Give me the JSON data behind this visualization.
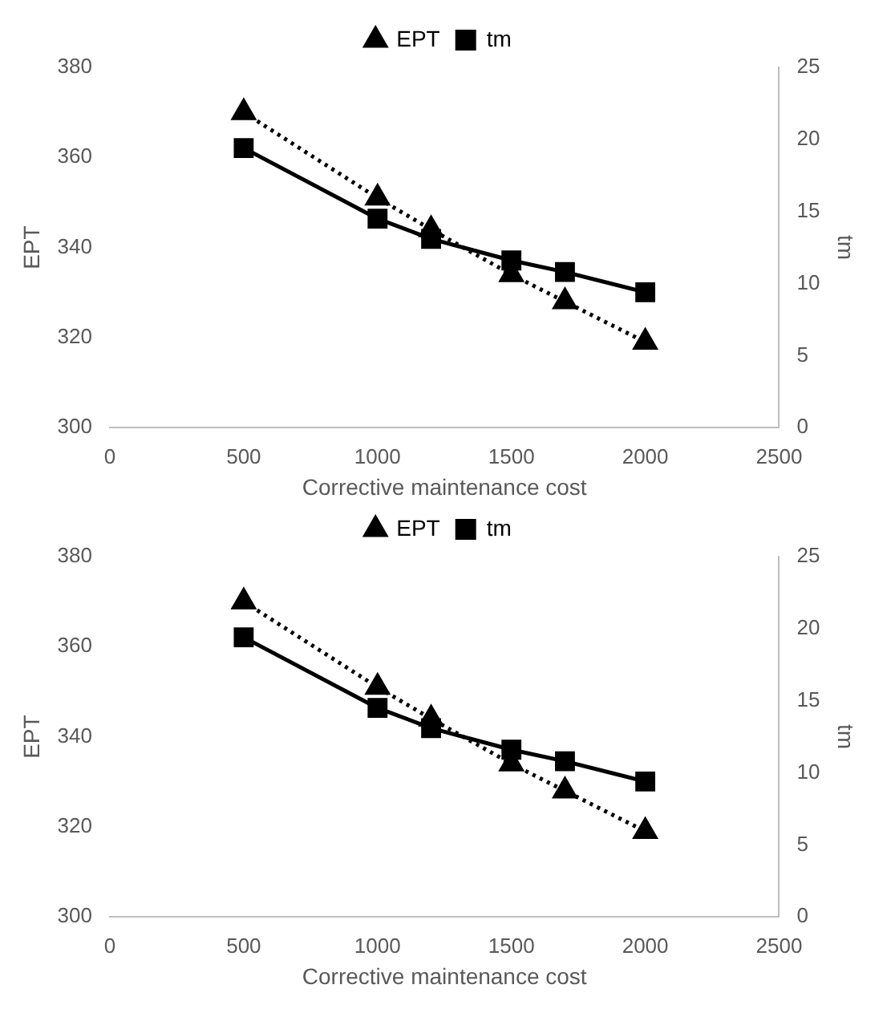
{
  "chart_data": [
    {
      "type": "line",
      "xlabel": "Corrective maintenance cost",
      "ylabel": "EPT",
      "y2label": "tm",
      "x": [
        500,
        1000,
        1200,
        1500,
        1700,
        2000
      ],
      "xlim": [
        0,
        2500
      ],
      "xticks": [
        0,
        500,
        1000,
        1500,
        2000,
        2500
      ],
      "ylim": [
        300,
        380
      ],
      "yticks": [
        300,
        320,
        340,
        360,
        380
      ],
      "y2lim": [
        0,
        25
      ],
      "y2ticks": [
        0,
        5,
        10,
        15,
        20,
        25
      ],
      "legend": "top",
      "grid": false,
      "series": [
        {
          "name": "EPT",
          "color": "#000000",
          "marker": "triangle",
          "line_style": "dotted",
          "values": [
            370,
            351,
            344,
            334,
            328,
            319
          ]
        },
        {
          "name": "tm",
          "color": "#000000",
          "marker": "square",
          "line_style": "solid",
          "axis": "y2",
          "values": [
            19.4,
            14.5,
            13.1,
            11.6,
            10.8,
            9.4
          ]
        }
      ]
    },
    {
      "type": "line",
      "xlabel": "Corrective maintenance cost",
      "ylabel": "EPT",
      "y2label": "tm",
      "x": [
        500,
        1000,
        1200,
        1500,
        1700,
        2000
      ],
      "xlim": [
        0,
        2500
      ],
      "xticks": [
        0,
        500,
        1000,
        1500,
        2000,
        2500
      ],
      "ylim": [
        300,
        380
      ],
      "yticks": [
        300,
        320,
        340,
        360,
        380
      ],
      "y2lim": [
        0,
        25
      ],
      "y2ticks": [
        0,
        5,
        10,
        15,
        20,
        25
      ],
      "legend": "top",
      "grid": false,
      "series": [
        {
          "name": "EPT",
          "color": "#000000",
          "marker": "triangle",
          "line_style": "dotted",
          "values": [
            370,
            351,
            344,
            334,
            328,
            319
          ]
        },
        {
          "name": "tm",
          "color": "#000000",
          "marker": "square",
          "line_style": "solid",
          "axis": "y2",
          "values": [
            19.4,
            14.5,
            13.1,
            11.6,
            10.8,
            9.4
          ]
        }
      ]
    }
  ]
}
